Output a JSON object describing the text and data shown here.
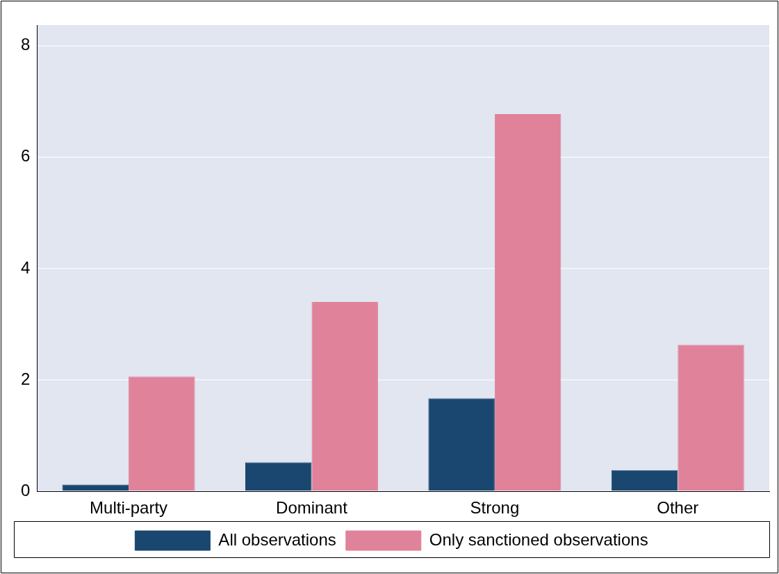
{
  "chart_data": {
    "type": "bar",
    "categories": [
      "Multi-party",
      "Dominant",
      "Strong",
      "Other"
    ],
    "series": [
      {
        "name": "All observations",
        "color": "#1a476f",
        "values": [
          0.12,
          0.52,
          1.67,
          0.38
        ]
      },
      {
        "name": "Only sanctioned observations",
        "color": "#e0829a",
        "values": [
          2.06,
          3.4,
          6.77,
          2.63
        ]
      }
    ],
    "ylim": [
      0,
      8.37
    ],
    "yticks": [
      0,
      2,
      4,
      6,
      8
    ],
    "grid": "y",
    "legend": "bottom"
  }
}
